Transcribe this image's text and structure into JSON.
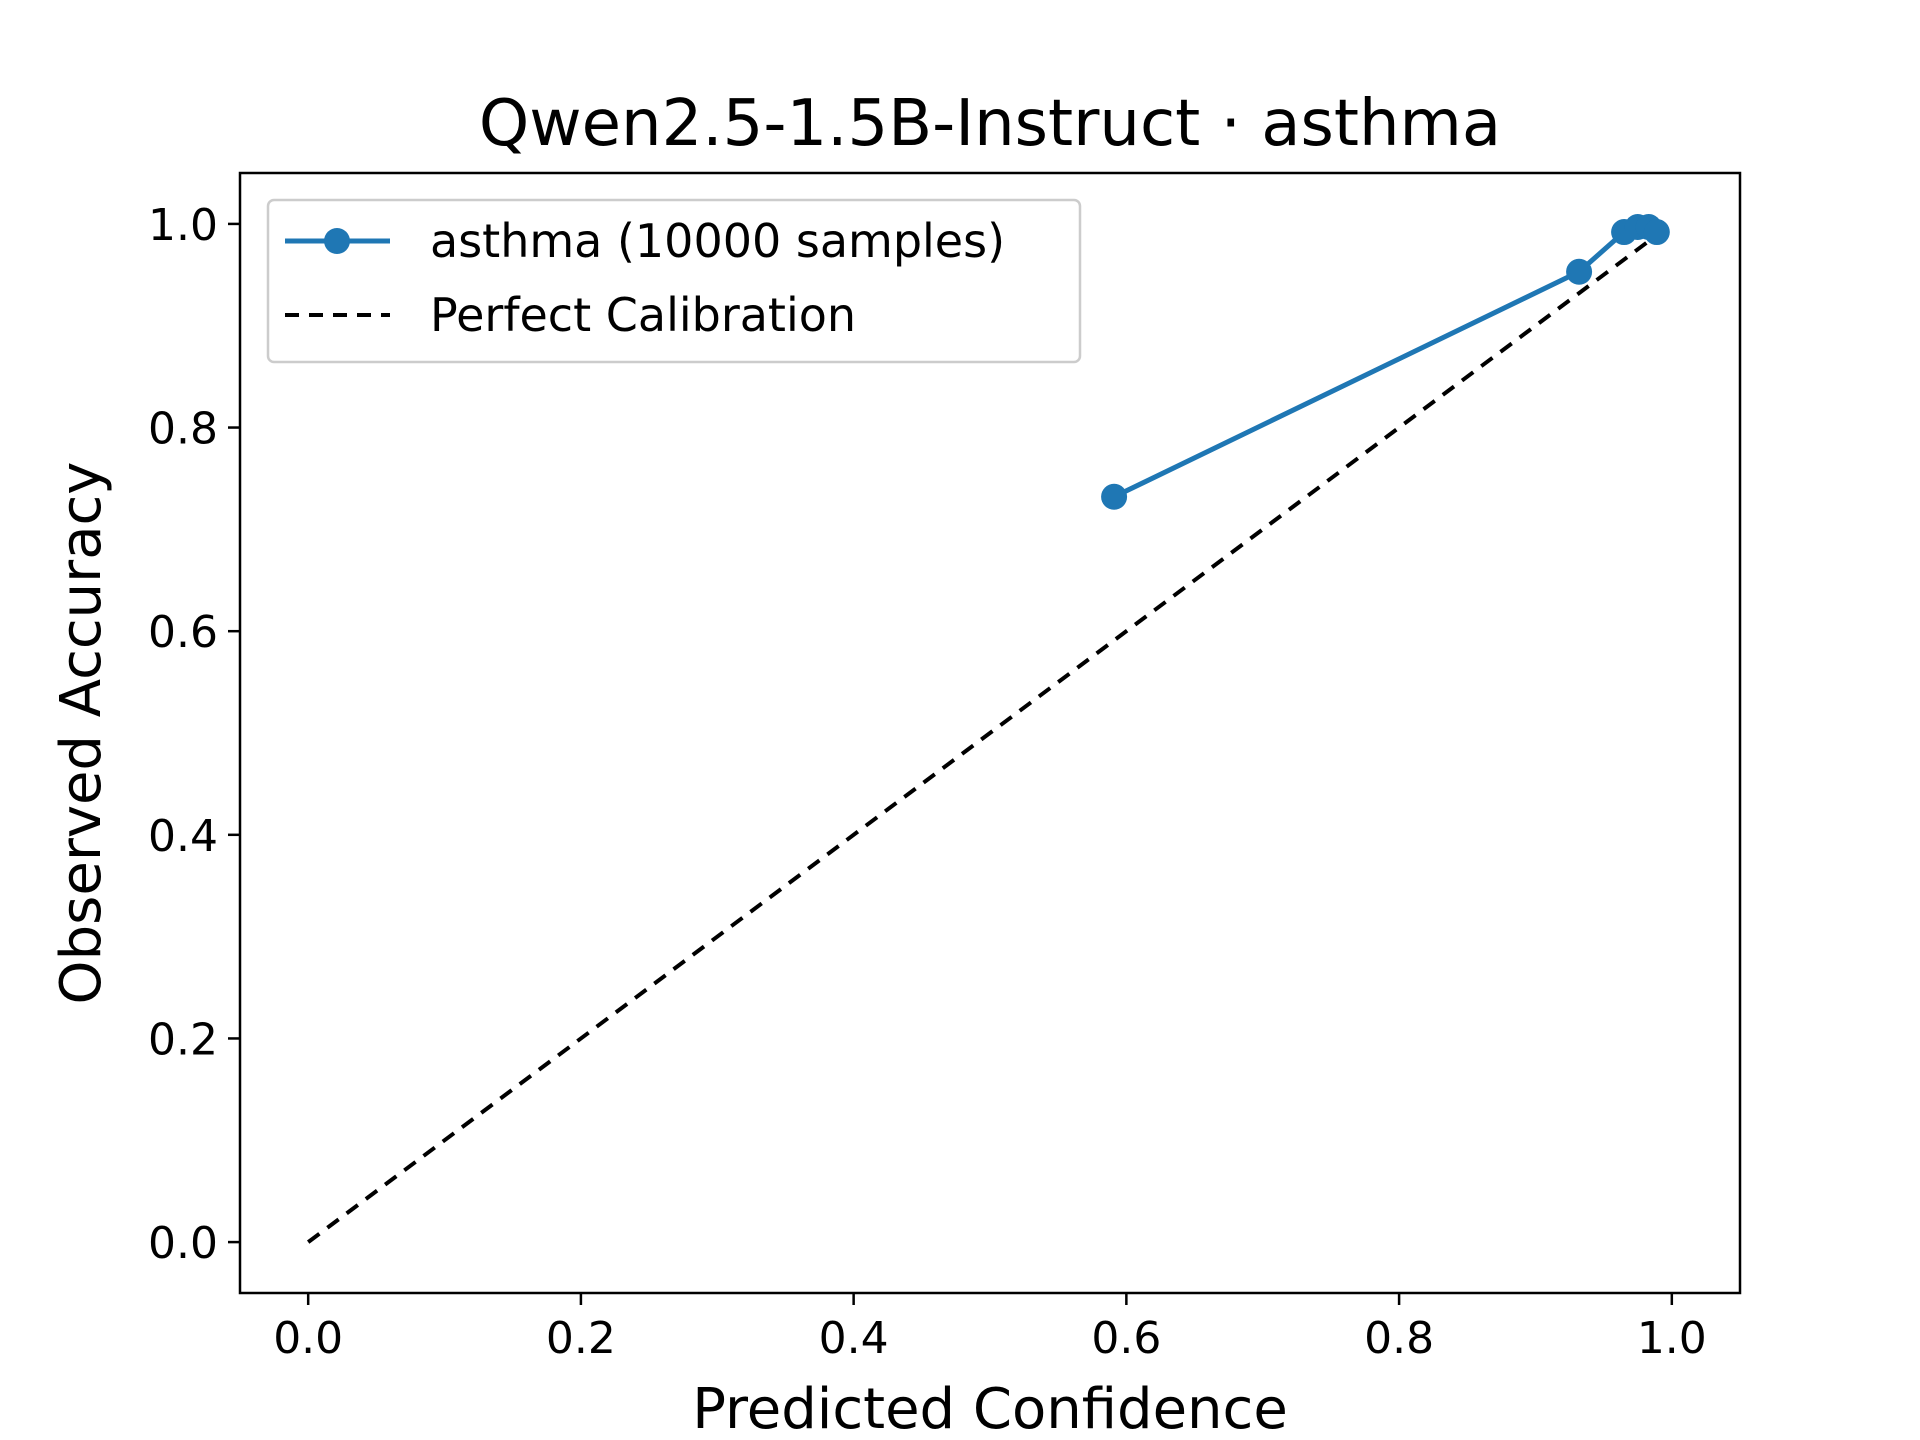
{
  "chart_data": {
    "type": "line",
    "title": "Qwen2.5-1.5B-Instruct · asthma",
    "xlabel": "Predicted Confidence",
    "ylabel": "Observed Accuracy",
    "xlim": [
      -0.05,
      1.05
    ],
    "ylim": [
      -0.05,
      1.05
    ],
    "xticks": [
      0.0,
      0.2,
      0.4,
      0.6,
      0.8,
      1.0
    ],
    "yticks": [
      0.0,
      0.2,
      0.4,
      0.6,
      0.8,
      1.0
    ],
    "xtick_labels": [
      "0.0",
      "0.2",
      "0.4",
      "0.6",
      "0.8",
      "1.0"
    ],
    "ytick_labels": [
      "0.0",
      "0.2",
      "0.4",
      "0.6",
      "0.8",
      "1.0"
    ],
    "legend_position": "upper-left",
    "series": [
      {
        "name": "asthma (10000 samples)",
        "style": "solid-with-markers",
        "color": "#1f77b4",
        "x": [
          0.591,
          0.932,
          0.965,
          0.975,
          0.983,
          0.989
        ],
        "y": [
          0.732,
          0.953,
          0.992,
          0.997,
          0.997,
          0.992
        ]
      },
      {
        "name": "Perfect Calibration",
        "style": "dashed",
        "color": "#000000",
        "x": [
          0.0,
          1.0
        ],
        "y": [
          0.0,
          1.0
        ]
      }
    ]
  }
}
